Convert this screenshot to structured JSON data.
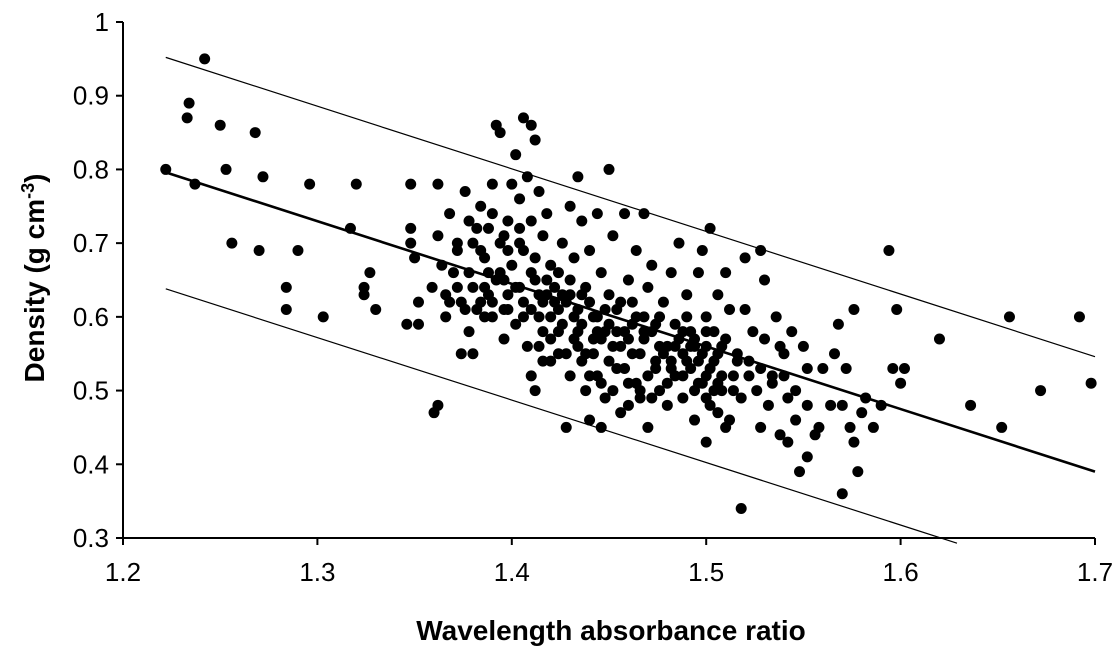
{
  "chart_data": {
    "type": "scatter",
    "title": "",
    "xlabel": "Wavelength absorbance ratio",
    "ylabel": "Density (g cm",
    "ylabel_superscript": "-3",
    "ylabel_suffix": ")",
    "xlim": [
      1.2,
      1.7
    ],
    "ylim": [
      0.3,
      1.0
    ],
    "x_ticks": [
      "1.2",
      "1.3",
      "1.4",
      "1.5",
      "1.6",
      "1.7"
    ],
    "y_ticks": [
      "0.3",
      "0.4",
      "0.5",
      "0.6",
      "0.7",
      "0.8",
      "0.9",
      "1"
    ],
    "grid": false,
    "legend": "none",
    "marker_color": "#000000",
    "lines": [
      {
        "x": [
          1.222,
          1.7
        ],
        "y": [
          0.952,
          0.546
        ],
        "style": "thin"
      },
      {
        "x": [
          1.222,
          1.7
        ],
        "y": [
          0.796,
          0.39
        ],
        "style": "thick"
      },
      {
        "x": [
          1.222,
          1.629
        ],
        "y": [
          0.638,
          0.293
        ],
        "style": "thin"
      }
    ],
    "points": [
      [
        1.242,
        0.95
      ],
      [
        1.234,
        0.89
      ],
      [
        1.233,
        0.87
      ],
      [
        1.25,
        0.86
      ],
      [
        1.268,
        0.85
      ],
      [
        1.222,
        0.8
      ],
      [
        1.237,
        0.78
      ],
      [
        1.253,
        0.8
      ],
      [
        1.272,
        0.79
      ],
      [
        1.296,
        0.78
      ],
      [
        1.32,
        0.78
      ],
      [
        1.256,
        0.7
      ],
      [
        1.27,
        0.69
      ],
      [
        1.29,
        0.69
      ],
      [
        1.284,
        0.64
      ],
      [
        1.284,
        0.61
      ],
      [
        1.303,
        0.6
      ],
      [
        1.317,
        0.72
      ],
      [
        1.327,
        0.66
      ],
      [
        1.324,
        0.64
      ],
      [
        1.324,
        0.63
      ],
      [
        1.33,
        0.61
      ],
      [
        1.348,
        0.78
      ],
      [
        1.348,
        0.72
      ],
      [
        1.348,
        0.7
      ],
      [
        1.35,
        0.68
      ],
      [
        1.352,
        0.62
      ],
      [
        1.346,
        0.59
      ],
      [
        1.352,
        0.59
      ],
      [
        1.359,
        0.64
      ],
      [
        1.36,
        0.47
      ],
      [
        1.362,
        0.48
      ],
      [
        1.362,
        0.78
      ],
      [
        1.362,
        0.71
      ],
      [
        1.364,
        0.67
      ],
      [
        1.366,
        0.63
      ],
      [
        1.368,
        0.74
      ],
      [
        1.37,
        0.66
      ],
      [
        1.372,
        0.69
      ],
      [
        1.374,
        0.62
      ],
      [
        1.374,
        0.55
      ],
      [
        1.376,
        0.77
      ],
      [
        1.378,
        0.58
      ],
      [
        1.38,
        0.64
      ],
      [
        1.38,
        0.55
      ],
      [
        1.382,
        0.72
      ],
      [
        1.384,
        0.75
      ],
      [
        1.386,
        0.68
      ],
      [
        1.386,
        0.6
      ],
      [
        1.388,
        0.63
      ],
      [
        1.388,
        0.66
      ],
      [
        1.39,
        0.78
      ],
      [
        1.39,
        0.74
      ],
      [
        1.392,
        0.86
      ],
      [
        1.394,
        0.85
      ],
      [
        1.394,
        0.7
      ],
      [
        1.396,
        0.65
      ],
      [
        1.396,
        0.57
      ],
      [
        1.398,
        0.73
      ],
      [
        1.398,
        0.61
      ],
      [
        1.4,
        0.78
      ],
      [
        1.4,
        0.67
      ],
      [
        1.402,
        0.82
      ],
      [
        1.402,
        0.59
      ],
      [
        1.404,
        0.76
      ],
      [
        1.404,
        0.64
      ],
      [
        1.406,
        0.87
      ],
      [
        1.406,
        0.69
      ],
      [
        1.408,
        0.79
      ],
      [
        1.408,
        0.56
      ],
      [
        1.41,
        0.86
      ],
      [
        1.41,
        0.73
      ],
      [
        1.41,
        0.52
      ],
      [
        1.412,
        0.84
      ],
      [
        1.412,
        0.65
      ],
      [
        1.412,
        0.5
      ],
      [
        1.414,
        0.77
      ],
      [
        1.414,
        0.6
      ],
      [
        1.416,
        0.71
      ],
      [
        1.416,
        0.54
      ],
      [
        1.418,
        0.74
      ],
      [
        1.418,
        0.63
      ],
      [
        1.42,
        0.67
      ],
      [
        1.42,
        0.57
      ],
      [
        1.422,
        0.62
      ],
      [
        1.424,
        0.66
      ],
      [
        1.424,
        0.55
      ],
      [
        1.426,
        0.59
      ],
      [
        1.426,
        0.7
      ],
      [
        1.428,
        0.45
      ],
      [
        1.43,
        0.75
      ],
      [
        1.43,
        0.63
      ],
      [
        1.43,
        0.52
      ],
      [
        1.432,
        0.68
      ],
      [
        1.432,
        0.57
      ],
      [
        1.434,
        0.79
      ],
      [
        1.434,
        0.61
      ],
      [
        1.436,
        0.73
      ],
      [
        1.436,
        0.54
      ],
      [
        1.438,
        0.64
      ],
      [
        1.438,
        0.5
      ],
      [
        1.44,
        0.69
      ],
      [
        1.44,
        0.46
      ],
      [
        1.442,
        0.6
      ],
      [
        1.442,
        0.55
      ],
      [
        1.444,
        0.74
      ],
      [
        1.444,
        0.52
      ],
      [
        1.446,
        0.66
      ],
      [
        1.446,
        0.45
      ],
      [
        1.448,
        0.58
      ],
      [
        1.448,
        0.49
      ],
      [
        1.45,
        0.8
      ],
      [
        1.45,
        0.63
      ],
      [
        1.452,
        0.71
      ],
      [
        1.452,
        0.56
      ],
      [
        1.454,
        0.53
      ],
      [
        1.454,
        0.61
      ],
      [
        1.456,
        0.47
      ],
      [
        1.458,
        0.74
      ],
      [
        1.458,
        0.58
      ],
      [
        1.46,
        0.65
      ],
      [
        1.46,
        0.51
      ],
      [
        1.462,
        0.55
      ],
      [
        1.464,
        0.69
      ],
      [
        1.464,
        0.6
      ],
      [
        1.466,
        0.49
      ],
      [
        1.468,
        0.74
      ],
      [
        1.468,
        0.57
      ],
      [
        1.47,
        0.64
      ],
      [
        1.47,
        0.52
      ],
      [
        1.47,
        0.45
      ],
      [
        1.472,
        0.67
      ],
      [
        1.474,
        0.59
      ],
      [
        1.474,
        0.54
      ],
      [
        1.476,
        0.5
      ],
      [
        1.478,
        0.62
      ],
      [
        1.48,
        0.56
      ],
      [
        1.48,
        0.48
      ],
      [
        1.482,
        0.66
      ],
      [
        1.484,
        0.59
      ],
      [
        1.484,
        0.52
      ],
      [
        1.486,
        0.7
      ],
      [
        1.488,
        0.55
      ],
      [
        1.488,
        0.49
      ],
      [
        1.49,
        0.63
      ],
      [
        1.49,
        0.6
      ],
      [
        1.492,
        0.53
      ],
      [
        1.494,
        0.57
      ],
      [
        1.494,
        0.46
      ],
      [
        1.496,
        0.66
      ],
      [
        1.496,
        0.51
      ],
      [
        1.498,
        0.69
      ],
      [
        1.498,
        0.55
      ],
      [
        1.5,
        0.6
      ],
      [
        1.5,
        0.52
      ],
      [
        1.5,
        0.43
      ],
      [
        1.502,
        0.72
      ],
      [
        1.502,
        0.48
      ],
      [
        1.504,
        0.58
      ],
      [
        1.504,
        0.54
      ],
      [
        1.506,
        0.63
      ],
      [
        1.506,
        0.47
      ],
      [
        1.508,
        0.5
      ],
      [
        1.51,
        0.66
      ],
      [
        1.51,
        0.57
      ],
      [
        1.51,
        0.45
      ],
      [
        1.512,
        0.61
      ],
      [
        1.514,
        0.52
      ],
      [
        1.516,
        0.55
      ],
      [
        1.518,
        0.34
      ],
      [
        1.518,
        0.49
      ],
      [
        1.52,
        0.68
      ],
      [
        1.52,
        0.61
      ],
      [
        1.522,
        0.54
      ],
      [
        1.524,
        0.58
      ],
      [
        1.526,
        0.5
      ],
      [
        1.528,
        0.69
      ],
      [
        1.528,
        0.45
      ],
      [
        1.53,
        0.65
      ],
      [
        1.53,
        0.57
      ],
      [
        1.532,
        0.48
      ],
      [
        1.534,
        0.52
      ],
      [
        1.536,
        0.6
      ],
      [
        1.538,
        0.56
      ],
      [
        1.538,
        0.44
      ],
      [
        1.54,
        0.52
      ],
      [
        1.542,
        0.49
      ],
      [
        1.542,
        0.43
      ],
      [
        1.544,
        0.58
      ],
      [
        1.546,
        0.46
      ],
      [
        1.548,
        0.39
      ],
      [
        1.55,
        0.56
      ],
      [
        1.552,
        0.53
      ],
      [
        1.552,
        0.41
      ],
      [
        1.556,
        0.44
      ],
      [
        1.558,
        0.45
      ],
      [
        1.56,
        0.53
      ],
      [
        1.564,
        0.48
      ],
      [
        1.566,
        0.55
      ],
      [
        1.568,
        0.59
      ],
      [
        1.57,
        0.36
      ],
      [
        1.57,
        0.48
      ],
      [
        1.572,
        0.53
      ],
      [
        1.574,
        0.45
      ],
      [
        1.576,
        0.43
      ],
      [
        1.576,
        0.61
      ],
      [
        1.578,
        0.39
      ],
      [
        1.58,
        0.47
      ],
      [
        1.582,
        0.49
      ],
      [
        1.586,
        0.45
      ],
      [
        1.59,
        0.48
      ],
      [
        1.594,
        0.69
      ],
      [
        1.596,
        0.53
      ],
      [
        1.598,
        0.61
      ],
      [
        1.6,
        0.51
      ],
      [
        1.602,
        0.53
      ],
      [
        1.62,
        0.57
      ],
      [
        1.636,
        0.48
      ],
      [
        1.652,
        0.45
      ],
      [
        1.656,
        0.6
      ],
      [
        1.672,
        0.5
      ],
      [
        1.692,
        0.6
      ],
      [
        1.698,
        0.51
      ],
      [
        1.372,
        0.7
      ],
      [
        1.378,
        0.73
      ],
      [
        1.384,
        0.69
      ],
      [
        1.392,
        0.65
      ],
      [
        1.398,
        0.69
      ],
      [
        1.404,
        0.72
      ],
      [
        1.412,
        0.68
      ],
      [
        1.418,
        0.65
      ],
      [
        1.424,
        0.58
      ],
      [
        1.428,
        0.62
      ],
      [
        1.436,
        0.59
      ],
      [
        1.442,
        0.57
      ],
      [
        1.448,
        0.61
      ],
      [
        1.456,
        0.56
      ],
      [
        1.462,
        0.59
      ],
      [
        1.466,
        0.55
      ],
      [
        1.472,
        0.58
      ],
      [
        1.478,
        0.55
      ],
      [
        1.486,
        0.57
      ],
      [
        1.492,
        0.58
      ],
      [
        1.496,
        0.54
      ],
      [
        1.502,
        0.53
      ],
      [
        1.508,
        0.56
      ],
      [
        1.514,
        0.5
      ],
      [
        1.382,
        0.61
      ],
      [
        1.39,
        0.62
      ],
      [
        1.396,
        0.61
      ],
      [
        1.406,
        0.62
      ],
      [
        1.414,
        0.63
      ],
      [
        1.42,
        0.6
      ],
      [
        1.426,
        0.63
      ],
      [
        1.434,
        0.58
      ],
      [
        1.44,
        0.62
      ],
      [
        1.446,
        0.57
      ],
      [
        1.454,
        0.58
      ],
      [
        1.46,
        0.57
      ],
      [
        1.468,
        0.6
      ],
      [
        1.476,
        0.56
      ],
      [
        1.482,
        0.53
      ],
      [
        1.49,
        0.54
      ],
      [
        1.498,
        0.51
      ],
      [
        1.504,
        0.5
      ],
      [
        1.368,
        0.62
      ],
      [
        1.376,
        0.61
      ],
      [
        1.386,
        0.64
      ],
      [
        1.394,
        0.66
      ],
      [
        1.402,
        0.64
      ],
      [
        1.41,
        0.61
      ],
      [
        1.416,
        0.58
      ],
      [
        1.422,
        0.64
      ],
      [
        1.432,
        0.6
      ],
      [
        1.438,
        0.55
      ],
      [
        1.444,
        0.58
      ],
      [
        1.45,
        0.54
      ],
      [
        1.458,
        0.53
      ],
      [
        1.464,
        0.51
      ],
      [
        1.472,
        0.49
      ],
      [
        1.48,
        0.51
      ],
      [
        1.488,
        0.52
      ],
      [
        1.494,
        0.5
      ],
      [
        1.5,
        0.49
      ],
      [
        1.506,
        0.51
      ],
      [
        1.512,
        0.46
      ],
      [
        1.38,
        0.7
      ],
      [
        1.388,
        0.72
      ],
      [
        1.396,
        0.71
      ],
      [
        1.404,
        0.7
      ],
      [
        1.41,
        0.66
      ],
      [
        1.416,
        0.62
      ],
      [
        1.424,
        0.61
      ],
      [
        1.43,
        0.65
      ],
      [
        1.436,
        0.63
      ],
      [
        1.444,
        0.6
      ],
      [
        1.45,
        0.59
      ],
      [
        1.456,
        0.62
      ],
      [
        1.462,
        0.62
      ],
      [
        1.468,
        0.58
      ],
      [
        1.476,
        0.6
      ],
      [
        1.484,
        0.56
      ],
      [
        1.492,
        0.56
      ],
      [
        1.5,
        0.58
      ],
      [
        1.506,
        0.55
      ],
      [
        1.366,
        0.6
      ],
      [
        1.372,
        0.64
      ],
      [
        1.378,
        0.66
      ],
      [
        1.384,
        0.62
      ],
      [
        1.39,
        0.6
      ],
      [
        1.398,
        0.63
      ],
      [
        1.406,
        0.6
      ],
      [
        1.414,
        0.56
      ],
      [
        1.42,
        0.54
      ],
      [
        1.428,
        0.55
      ],
      [
        1.434,
        0.56
      ],
      [
        1.44,
        0.52
      ],
      [
        1.446,
        0.51
      ],
      [
        1.452,
        0.5
      ],
      [
        1.46,
        0.48
      ],
      [
        1.466,
        0.5
      ],
      [
        1.474,
        0.53
      ],
      [
        1.482,
        0.54
      ],
      [
        1.488,
        0.58
      ],
      [
        1.494,
        0.56
      ],
      [
        1.5,
        0.56
      ],
      [
        1.508,
        0.52
      ],
      [
        1.516,
        0.54
      ],
      [
        1.522,
        0.52
      ],
      [
        1.528,
        0.53
      ],
      [
        1.534,
        0.51
      ],
      [
        1.54,
        0.55
      ],
      [
        1.546,
        0.5
      ],
      [
        1.552,
        0.48
      ]
    ]
  }
}
